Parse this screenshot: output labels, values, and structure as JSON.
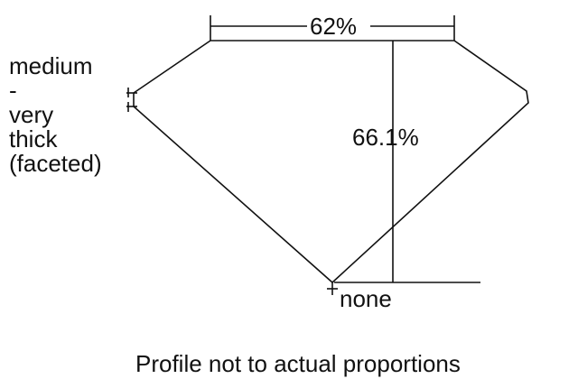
{
  "table_label": "62%",
  "depth_label": "66.1%",
  "girdle_label": [
    "medium",
    "-",
    "very",
    "thick",
    "(faceted)"
  ],
  "culet_label": "none",
  "caption": "Profile not to actual proportions",
  "colors": {
    "line": "#111111",
    "background": "#ffffff"
  }
}
